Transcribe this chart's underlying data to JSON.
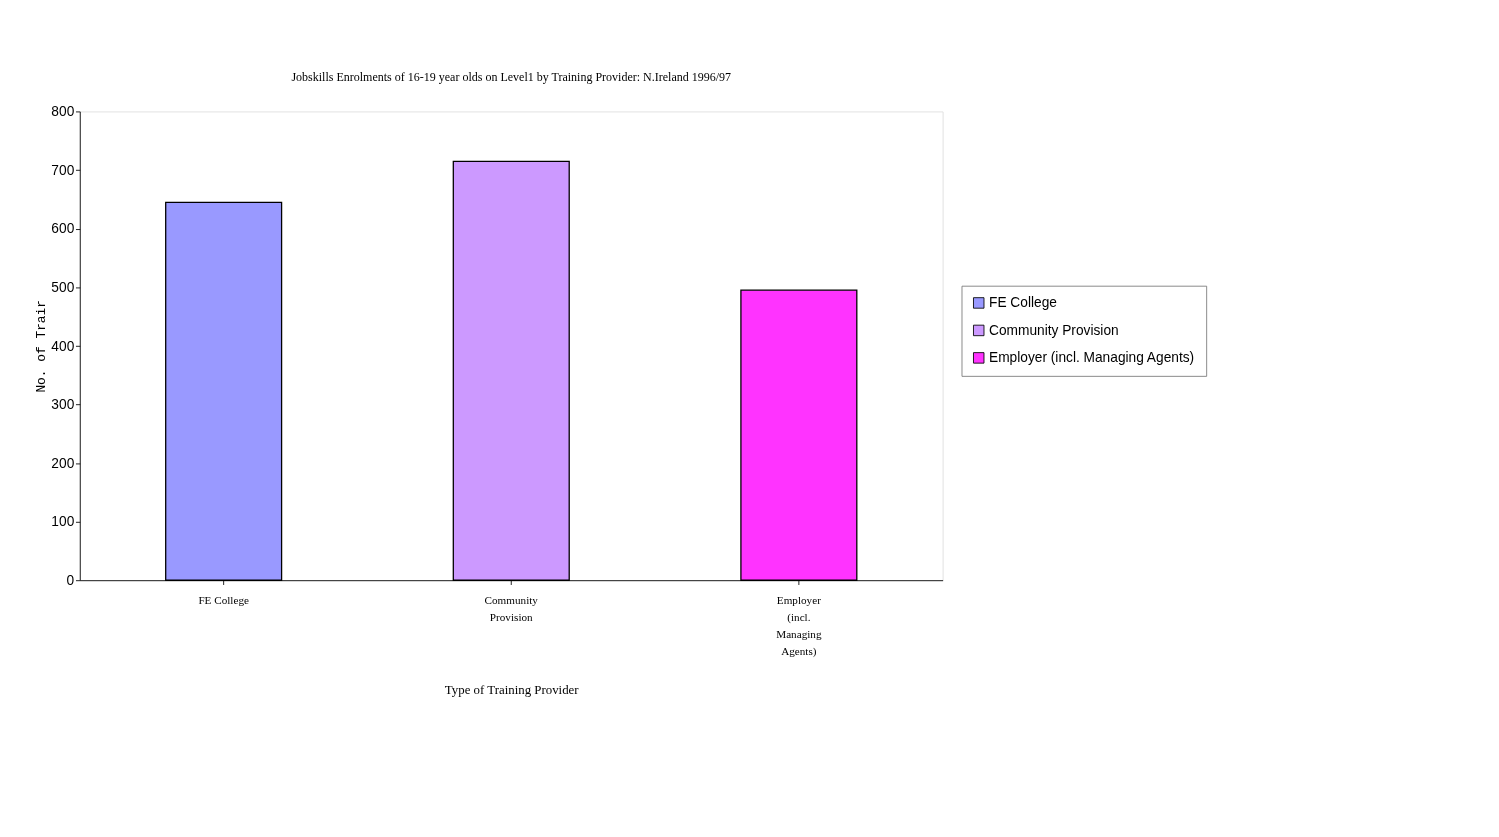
{
  "chart_data": {
    "type": "bar",
    "title": "Jobskills Enrolments of 16-19 year olds on Level1 by Training Provider: N.Ireland 1996/97",
    "xlabel": "Type of Training Provider",
    "ylabel": "No. of Trair",
    "categories": [
      "FE College",
      "Community Provision",
      "Employer (incl. Managing Agents)"
    ],
    "series": [
      {
        "name": "FE College",
        "color": "#9999ff",
        "values": [
          645,
          null,
          null
        ]
      },
      {
        "name": "Community Provision",
        "color": "#cc99ff",
        "values": [
          null,
          715,
          null
        ]
      },
      {
        "name": "Employer (incl. Managing Agents)",
        "color": "#ff33ff",
        "values": [
          null,
          null,
          495
        ]
      }
    ],
    "ylim": [
      0,
      800
    ],
    "yticks": [
      0,
      100,
      200,
      300,
      400,
      500,
      600,
      700,
      800
    ],
    "grid": false,
    "legend": "right"
  }
}
